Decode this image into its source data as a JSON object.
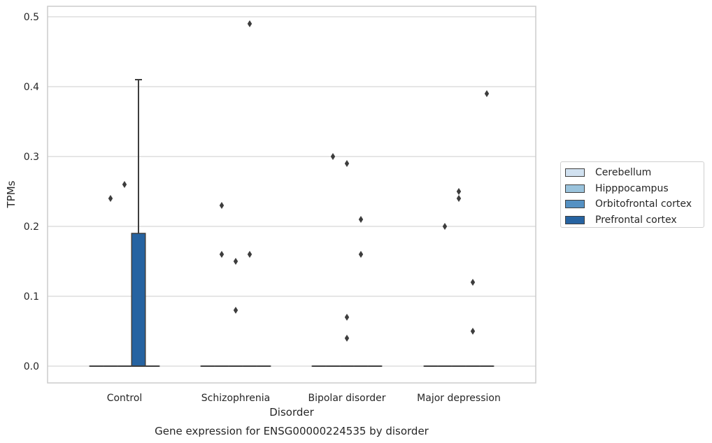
{
  "chart_data": {
    "type": "box",
    "title": "Gene expression for ENSG00000224535 by disorder",
    "xlabel": "Disorder",
    "ylabel": "TPMs",
    "ylim": [
      -0.024,
      0.515
    ],
    "yticks": [
      "0.0",
      "0.1",
      "0.2",
      "0.3",
      "0.4",
      "0.5"
    ],
    "ytick_values": [
      0,
      0.1,
      0.2,
      0.3,
      0.4,
      0.5
    ],
    "categories": [
      "Control",
      "Schizophrenia",
      "Bipolar disorder",
      "Major depression"
    ],
    "grid": "horizontal",
    "legend_position": "right",
    "series": [
      {
        "name": "Cerebellum",
        "color": "#d1e1f0",
        "boxes": [
          {
            "q1": 0,
            "median": 0,
            "q3": 0,
            "whisker_low": 0,
            "whisker_high": 0,
            "outliers": []
          },
          {
            "q1": 0,
            "median": 0,
            "q3": 0,
            "whisker_low": 0,
            "whisker_high": 0,
            "outliers": []
          },
          {
            "q1": 0,
            "median": 0,
            "q3": 0,
            "whisker_low": 0,
            "whisker_high": 0,
            "outliers": []
          },
          {
            "q1": 0,
            "median": 0,
            "q3": 0,
            "whisker_low": 0,
            "whisker_high": 0,
            "outliers": []
          }
        ]
      },
      {
        "name": "Hipppocampus",
        "color": "#9ac3dc",
        "boxes": [
          {
            "q1": 0,
            "median": 0,
            "q3": 0,
            "whisker_low": 0,
            "whisker_high": 0,
            "outliers": [
              0.24
            ]
          },
          {
            "q1": 0,
            "median": 0,
            "q3": 0,
            "whisker_low": 0,
            "whisker_high": 0,
            "outliers": [
              0.23,
              0.16
            ]
          },
          {
            "q1": 0,
            "median": 0,
            "q3": 0,
            "whisker_low": 0,
            "whisker_high": 0,
            "outliers": [
              0.3
            ]
          },
          {
            "q1": 0,
            "median": 0,
            "q3": 0,
            "whisker_low": 0,
            "whisker_high": 0,
            "outliers": [
              0.2
            ]
          }
        ]
      },
      {
        "name": "Orbitofrontal cortex",
        "color": "#5591c3",
        "boxes": [
          {
            "q1": 0,
            "median": 0,
            "q3": 0,
            "whisker_low": 0,
            "whisker_high": 0,
            "outliers": [
              0.26
            ]
          },
          {
            "q1": 0,
            "median": 0,
            "q3": 0,
            "whisker_low": 0,
            "whisker_high": 0,
            "outliers": [
              0.15,
              0.08
            ]
          },
          {
            "q1": 0,
            "median": 0,
            "q3": 0,
            "whisker_low": 0,
            "whisker_high": 0,
            "outliers": [
              0.29,
              0.07,
              0.04
            ]
          },
          {
            "q1": 0,
            "median": 0,
            "q3": 0,
            "whisker_low": 0,
            "whisker_high": 0,
            "outliers": [
              0.25,
              0.24
            ]
          }
        ]
      },
      {
        "name": "Prefrontal cortex",
        "color": "#2663a1",
        "boxes": [
          {
            "q1": 0,
            "median": 0,
            "q3": 0.19,
            "whisker_low": 0,
            "whisker_high": 0.41,
            "outliers": []
          },
          {
            "q1": 0,
            "median": 0,
            "q3": 0,
            "whisker_low": 0,
            "whisker_high": 0,
            "outliers": [
              0.49,
              0.16
            ]
          },
          {
            "q1": 0,
            "median": 0,
            "q3": 0,
            "whisker_low": 0,
            "whisker_high": 0,
            "outliers": [
              0.21,
              0.16
            ]
          },
          {
            "q1": 0,
            "median": 0,
            "q3": 0,
            "whisker_low": 0,
            "whisker_high": 0,
            "outliers": [
              0.12,
              0.05
            ]
          }
        ]
      },
      {
        "name": "",
        "color": "#2663a1",
        "boxes": [
          {
            "q1": 0,
            "median": 0,
            "q3": 0,
            "whisker_low": 0,
            "whisker_high": 0,
            "outliers": []
          },
          {
            "q1": 0,
            "median": 0,
            "q3": 0,
            "whisker_low": 0,
            "whisker_high": 0,
            "outliers": []
          },
          {
            "q1": 0,
            "median": 0,
            "q3": 0,
            "whisker_low": 0,
            "whisker_high": 0,
            "outliers": []
          },
          {
            "q1": 0,
            "median": 0,
            "q3": 0,
            "whisker_low": 0,
            "whisker_high": 0,
            "outliers": [
              0.39
            ]
          }
        ]
      }
    ]
  }
}
